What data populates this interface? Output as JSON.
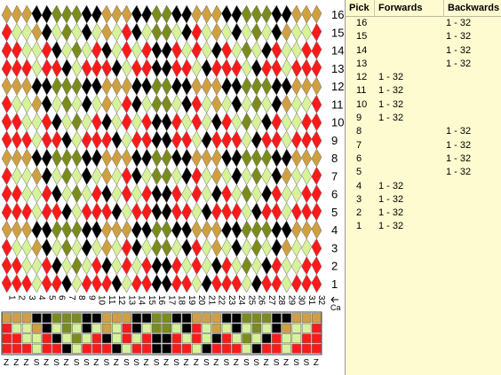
{
  "colors": {
    "red": "#ff1a1a",
    "black": "#000000",
    "olive": "#7b8c1c",
    "gold": "#d0a040",
    "pale": "#d8f29a",
    "grid": "#808080",
    "panel_bg": "#fffbd0"
  },
  "card_numbers": [
    "1",
    "2",
    "3",
    "4",
    "5",
    "6",
    "7",
    "8",
    "9",
    "10",
    "11",
    "12",
    "13",
    "14",
    "15",
    "16",
    "17",
    "18",
    "19",
    "20",
    "21",
    "22",
    "23",
    "24",
    "25",
    "26",
    "27",
    "28",
    "29",
    "30",
    "31",
    "32"
  ],
  "card_row_label": "Ca",
  "pick_numbers": [
    "16",
    "15",
    "14",
    "13",
    "12",
    "11",
    "10",
    "9",
    "8",
    "7",
    "6",
    "5",
    "4",
    "3",
    "2",
    "1"
  ],
  "threading": {
    "rows": [
      [
        "gold",
        "gold",
        "gold",
        "black",
        "black",
        "olive",
        "olive",
        "olive",
        "black",
        "black",
        "gold",
        "gold",
        "gold",
        "black",
        "black",
        "olive",
        "olive",
        "black",
        "black",
        "gold",
        "gold",
        "gold",
        "black",
        "black",
        "olive",
        "olive",
        "olive",
        "black",
        "black",
        "gold",
        "gold",
        "gold"
      ],
      [
        "red",
        "pale",
        "pale",
        "gold",
        "black",
        "pale",
        "olive",
        "pale",
        "black",
        "pale",
        "gold",
        "pale",
        "red",
        "black",
        "pale",
        "olive",
        "olive",
        "pale",
        "black",
        "red",
        "pale",
        "gold",
        "pale",
        "black",
        "pale",
        "olive",
        "pale",
        "black",
        "gold",
        "pale",
        "pale",
        "red"
      ],
      [
        "red",
        "red",
        "pale",
        "pale",
        "red",
        "black",
        "pale",
        "olive",
        "pale",
        "red",
        "black",
        "pale",
        "red",
        "pale",
        "red",
        "black",
        "black",
        "red",
        "pale",
        "red",
        "pale",
        "black",
        "red",
        "pale",
        "olive",
        "pale",
        "black",
        "red",
        "pale",
        "pale",
        "red",
        "red"
      ],
      [
        "red",
        "red",
        "red",
        "pale",
        "red",
        "red",
        "black",
        "pale",
        "red",
        "red",
        "red",
        "black",
        "pale",
        "red",
        "red",
        "black",
        "black",
        "red",
        "red",
        "pale",
        "black",
        "red",
        "red",
        "red",
        "pale",
        "black",
        "red",
        "red",
        "pale",
        "red",
        "red",
        "red"
      ]
    ]
  },
  "twist": [
    "Z",
    "Z",
    "Z",
    "S",
    "Z",
    "S",
    "Z",
    "S",
    "S",
    "Z",
    "S",
    "Z",
    "S",
    "S",
    "Z",
    "S",
    "Z",
    "S",
    "Z",
    "Z",
    "S",
    "Z",
    "S",
    "Z",
    "S",
    "S",
    "Z",
    "S",
    "Z",
    "S",
    "S",
    "Z"
  ],
  "pick_table": {
    "headers": {
      "pick": "Pick",
      "forwards": "Forwards",
      "backwards": "Backwards"
    },
    "rows": [
      {
        "pick": "16",
        "forwards": "",
        "backwards": "1 - 32"
      },
      {
        "pick": "15",
        "forwards": "",
        "backwards": "1 - 32"
      },
      {
        "pick": "14",
        "forwards": "",
        "backwards": "1 - 32"
      },
      {
        "pick": "13",
        "forwards": "",
        "backwards": "1 - 32"
      },
      {
        "pick": "12",
        "forwards": "1 - 32",
        "backwards": ""
      },
      {
        "pick": "11",
        "forwards": "1 - 32",
        "backwards": ""
      },
      {
        "pick": "10",
        "forwards": "1 - 32",
        "backwards": ""
      },
      {
        "pick": "9",
        "forwards": "1 - 32",
        "backwards": ""
      },
      {
        "pick": "8",
        "forwards": "",
        "backwards": "1 - 32"
      },
      {
        "pick": "7",
        "forwards": "",
        "backwards": "1 - 32"
      },
      {
        "pick": "6",
        "forwards": "",
        "backwards": "1 - 32"
      },
      {
        "pick": "5",
        "forwards": "",
        "backwards": "1 - 32"
      },
      {
        "pick": "4",
        "forwards": "1 - 32",
        "backwards": ""
      },
      {
        "pick": "3",
        "forwards": "1 - 32",
        "backwards": ""
      },
      {
        "pick": "2",
        "forwards": "1 - 32",
        "backwards": ""
      },
      {
        "pick": "1",
        "forwards": "1 - 32",
        "backwards": ""
      }
    ]
  }
}
